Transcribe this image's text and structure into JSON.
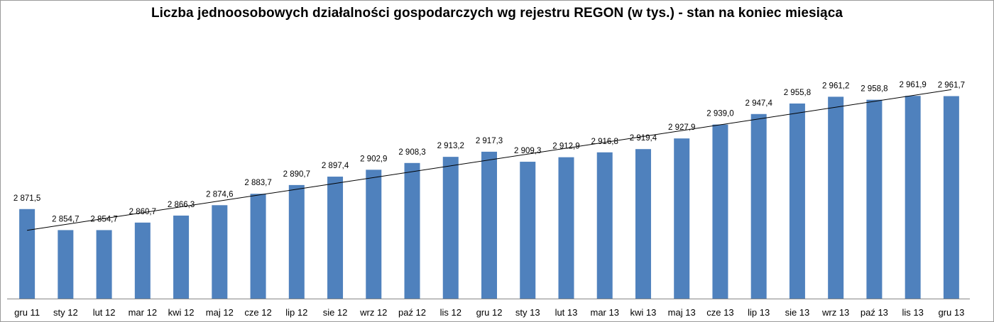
{
  "chart_data": {
    "type": "bar",
    "title": "Liczba jednoosobowych działalności gospodarczych wg rejestru REGON (w tys.) - stan na koniec miesiąca",
    "categories": [
      "gru 11",
      "sty 12",
      "lut 12",
      "mar 12",
      "kwi 12",
      "maj 12",
      "cze 12",
      "lip 12",
      "sie 12",
      "wrz 12",
      "paź 12",
      "lis 12",
      "gru 12",
      "sty 13",
      "lut 13",
      "mar 13",
      "kwi 13",
      "maj 13",
      "cze 13",
      "lip 13",
      "sie 13",
      "wrz 13",
      "paź 13",
      "lis 13",
      "gru 13"
    ],
    "values": [
      2871.5,
      2854.7,
      2854.7,
      2860.7,
      2866.3,
      2874.6,
      2883.7,
      2890.7,
      2897.4,
      2902.9,
      2908.3,
      2913.2,
      2917.3,
      2909.3,
      2912.9,
      2916.8,
      2919.4,
      2927.9,
      2939.0,
      2947.4,
      2955.8,
      2961.2,
      2958.8,
      2961.9,
      2961.7
    ],
    "value_labels": [
      "2 871,5",
      "2 854,7",
      "2 854,7",
      "2 860,7",
      "2 866,3",
      "2 874,6",
      "2 883,7",
      "2 890,7",
      "2 897,4",
      "2 902,9",
      "2 908,3",
      "2 913,2",
      "2 917,3",
      "2 909,3",
      "2 912,9",
      "2 916,8",
      "2 919,4",
      "2 927,9",
      "2 939,0",
      "2 947,4",
      "2 955,8",
      "2 961,2",
      "2 958,8",
      "2 961,9",
      "2 961,7"
    ],
    "trendline": "linear",
    "ylim": [
      2800,
      2975
    ],
    "xlabel": "",
    "ylabel": "",
    "grid": false,
    "legend": "none",
    "colors": {
      "bar": "#4f81bd",
      "trend": "#000000",
      "axis": "#868686"
    }
  }
}
